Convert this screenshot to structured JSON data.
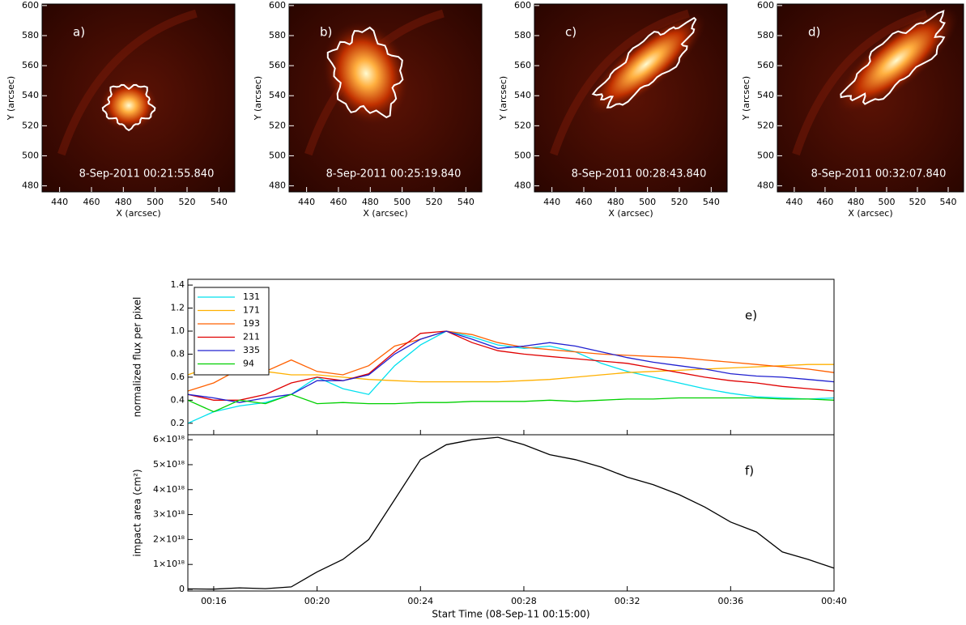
{
  "chart_data": [
    {
      "type": "image",
      "label": "a)",
      "annotation": "8-Sep-2011 00:21:55.840",
      "xlabel": "X (arcsec)",
      "ylabel": "Y (arcsec)",
      "xlim": [
        429,
        550
      ],
      "ylim": [
        476,
        601
      ],
      "xticks": [
        440,
        460,
        480,
        500,
        520,
        540
      ],
      "yticks": [
        480,
        500,
        520,
        540,
        560,
        580,
        600
      ]
    },
    {
      "type": "image",
      "label": "b)",
      "annotation": "8-Sep-2011 00:25:19.840",
      "xlabel": "X (arcsec)",
      "ylabel": "Y (arcsec)",
      "xlim": [
        429,
        550
      ],
      "ylim": [
        476,
        601
      ],
      "xticks": [
        440,
        460,
        480,
        500,
        520,
        540
      ],
      "yticks": [
        480,
        500,
        520,
        540,
        560,
        580,
        600
      ]
    },
    {
      "type": "image",
      "label": "c)",
      "annotation": "8-Sep-2011 00:28:43.840",
      "xlabel": "X (arcsec)",
      "ylabel": "Y (arcsec)",
      "xlim": [
        429,
        550
      ],
      "ylim": [
        476,
        601
      ],
      "xticks": [
        440,
        460,
        480,
        500,
        520,
        540
      ],
      "yticks": [
        480,
        500,
        520,
        540,
        560,
        580,
        600
      ]
    },
    {
      "type": "image",
      "label": "d)",
      "annotation": "8-Sep-2011 00:32:07.840",
      "xlabel": "X (arcsec)",
      "ylabel": "Y (arcsec)",
      "xlim": [
        429,
        550
      ],
      "ylim": [
        476,
        601
      ],
      "xticks": [
        440,
        460,
        480,
        500,
        520,
        540
      ],
      "yticks": [
        480,
        500,
        520,
        540,
        560,
        580,
        600
      ]
    },
    {
      "type": "line",
      "annotation": "e)",
      "ylabel": "normalized flux per pixel",
      "xlim": [
        15,
        40
      ],
      "ylim": [
        0.1,
        1.45
      ],
      "xticks": [
        16,
        20,
        24,
        28,
        32,
        36,
        40
      ],
      "yticks": [
        0.2,
        0.4,
        0.6,
        0.8,
        {
          "value": 1,
          "label": "1.0"
        },
        1.2,
        1.4
      ],
      "x": [
        15,
        16,
        17,
        18,
        19,
        20,
        21,
        22,
        23,
        24,
        25,
        26,
        27,
        28,
        29,
        30,
        31,
        32,
        33,
        34,
        35,
        36,
        37,
        38,
        39,
        40
      ],
      "series": [
        {
          "name": "131",
          "color": "#00e0ee",
          "values": [
            0.2,
            0.3,
            0.35,
            0.38,
            0.45,
            0.6,
            0.5,
            0.45,
            0.7,
            0.88,
            1.0,
            0.95,
            0.88,
            0.85,
            0.87,
            0.82,
            0.72,
            0.65,
            0.6,
            0.55,
            0.5,
            0.46,
            0.43,
            0.42,
            0.41,
            0.42
          ]
        },
        {
          "name": "171",
          "color": "#ffb000",
          "values": [
            0.62,
            0.7,
            0.68,
            0.65,
            0.62,
            0.62,
            0.6,
            0.58,
            0.57,
            0.56,
            0.56,
            0.56,
            0.56,
            0.57,
            0.58,
            0.6,
            0.62,
            0.64,
            0.65,
            0.66,
            0.67,
            0.68,
            0.69,
            0.7,
            0.71,
            0.71
          ]
        },
        {
          "name": "193",
          "color": "#ff6000",
          "values": [
            0.48,
            0.55,
            0.67,
            0.65,
            0.75,
            0.65,
            0.62,
            0.7,
            0.87,
            0.93,
            1.0,
            0.97,
            0.9,
            0.86,
            0.84,
            0.82,
            0.8,
            0.79,
            0.78,
            0.77,
            0.75,
            0.73,
            0.71,
            0.69,
            0.67,
            0.64
          ]
        },
        {
          "name": "211",
          "color": "#e00000",
          "values": [
            0.45,
            0.4,
            0.4,
            0.45,
            0.55,
            0.6,
            0.57,
            0.63,
            0.82,
            0.98,
            1.0,
            0.9,
            0.83,
            0.8,
            0.78,
            0.76,
            0.74,
            0.72,
            0.68,
            0.64,
            0.6,
            0.57,
            0.55,
            0.52,
            0.5,
            0.48
          ]
        },
        {
          "name": "335",
          "color": "#2020d0",
          "values": [
            0.45,
            0.42,
            0.38,
            0.42,
            0.45,
            0.57,
            0.57,
            0.62,
            0.8,
            0.93,
            1.0,
            0.93,
            0.85,
            0.87,
            0.9,
            0.87,
            0.82,
            0.77,
            0.73,
            0.7,
            0.67,
            0.63,
            0.61,
            0.6,
            0.58,
            0.56
          ]
        },
        {
          "name": "94",
          "color": "#00d000",
          "values": [
            0.4,
            0.3,
            0.4,
            0.37,
            0.45,
            0.37,
            0.38,
            0.37,
            0.37,
            0.38,
            0.38,
            0.39,
            0.39,
            0.39,
            0.4,
            0.39,
            0.4,
            0.41,
            0.41,
            0.42,
            0.42,
            0.42,
            0.42,
            0.41,
            0.41,
            0.4
          ]
        }
      ]
    },
    {
      "type": "line",
      "annotation": "f)",
      "ylabel": "impact area (cm²)",
      "xlabel": "Start Time (08-Sep-11 00:15:00)",
      "xlim": [
        15,
        40
      ],
      "ylim": [
        -6.5e+16,
        6.2e+18
      ],
      "xticks": [
        {
          "value": 16,
          "label": "00:16"
        },
        {
          "value": 20,
          "label": "00:20"
        },
        {
          "value": 24,
          "label": "00:24"
        },
        {
          "value": 28,
          "label": "00:28"
        },
        {
          "value": 32,
          "label": "00:32"
        },
        {
          "value": 36,
          "label": "00:36"
        },
        {
          "value": 40,
          "label": "00:40"
        }
      ],
      "yticks": [
        0,
        {
          "value": 1e+18,
          "label": "1×10¹⁸"
        },
        {
          "value": 2e+18,
          "label": "2×10¹⁸"
        },
        {
          "value": 3e+18,
          "label": "3×10¹⁸"
        },
        {
          "value": 4e+18,
          "label": "4×10¹⁸"
        },
        {
          "value": 5e+18,
          "label": "5×10¹⁸"
        },
        {
          "value": 6e+18,
          "label": "6×10¹⁸"
        }
      ],
      "x": [
        15,
        16,
        17,
        18,
        19,
        20,
        21,
        22,
        23,
        24,
        25,
        26,
        27,
        28,
        29,
        30,
        31,
        32,
        33,
        34,
        35,
        36,
        37,
        38,
        39,
        40
      ],
      "series": [
        {
          "color": "#000000",
          "values": [
            2e+16,
            1e+16,
            6e+16,
            3e+16,
            1e+17,
            7e+17,
            1.2e+18,
            2e+18,
            3.6e+18,
            5.2e+18,
            5.8e+18,
            6e+18,
            6.1e+18,
            5.8e+18,
            5.4e+18,
            5.2e+18,
            4.9e+18,
            4.5e+18,
            4.2e+18,
            3.8e+18,
            3.3e+18,
            2.7e+18,
            2.3e+18,
            1.5e+18,
            1.2e+18,
            8.5e+17
          ]
        }
      ]
    }
  ]
}
